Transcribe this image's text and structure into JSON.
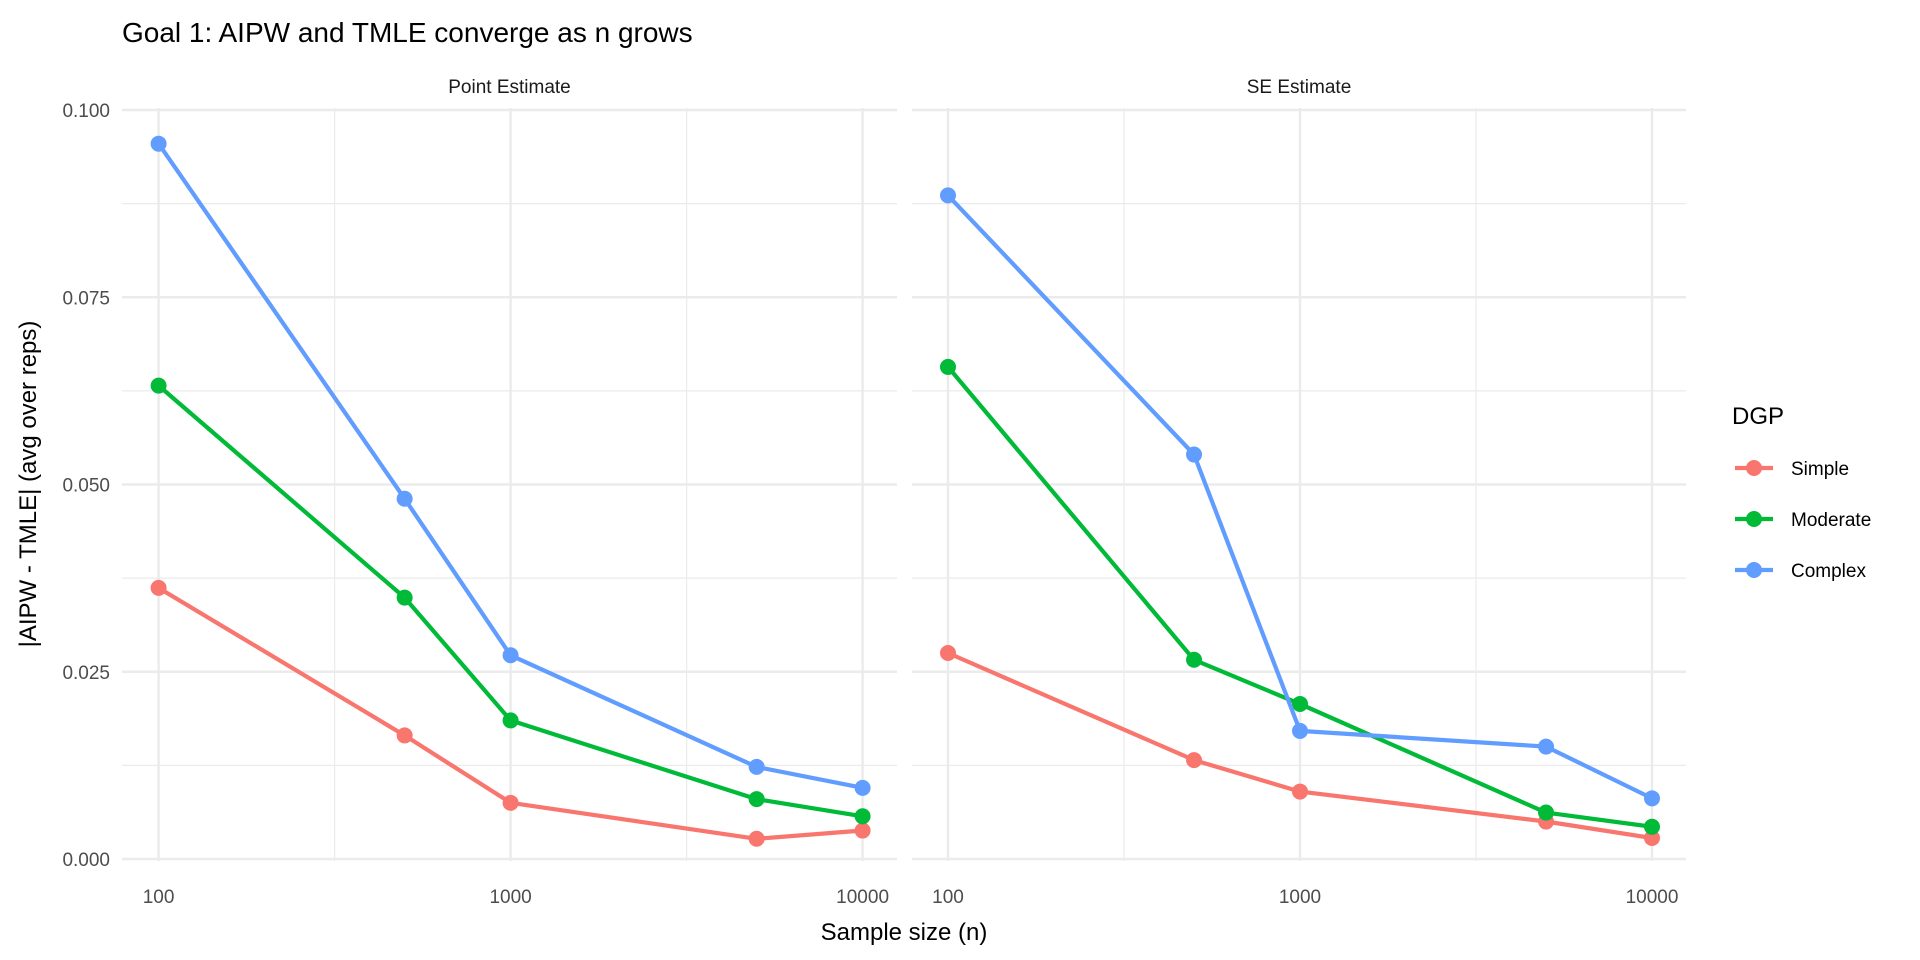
{
  "chart_data": {
    "type": "line",
    "title": "Goal 1: AIPW and TMLE converge as n grows",
    "xlabel": "Sample size (n)",
    "ylabel": "|AIPW - TMLE| (avg over reps)",
    "x_scale": "log10",
    "x": [
      100,
      500,
      1000,
      5000,
      10000
    ],
    "xlim": [
      100,
      10000
    ],
    "ylim": [
      0,
      0.1
    ],
    "x_ticks": [
      100,
      1000,
      10000
    ],
    "x_tick_labels": [
      "100",
      "1000",
      "10000"
    ],
    "y_ticks": [
      0,
      0.025,
      0.05,
      0.075,
      0.1
    ],
    "y_tick_labels": [
      "0.000",
      "0.025",
      "0.050",
      "0.075",
      "0.100"
    ],
    "grid": true,
    "legend": {
      "title": "DGP",
      "placement": "right"
    },
    "facets": [
      {
        "label": "Point Estimate",
        "series": [
          {
            "name": "Simple",
            "color": "#F8766D",
            "values": [
              0.0362,
              0.0165,
              0.0075,
              0.0027,
              0.0038
            ]
          },
          {
            "name": "Moderate",
            "color": "#00BA38",
            "values": [
              0.0632,
              0.0349,
              0.0185,
              0.008,
              0.0057
            ]
          },
          {
            "name": "Complex",
            "color": "#619CFF",
            "values": [
              0.0955,
              0.0481,
              0.0272,
              0.0123,
              0.0095
            ]
          }
        ]
      },
      {
        "label": "SE Estimate",
        "series": [
          {
            "name": "Simple",
            "color": "#F8766D",
            "values": [
              0.0275,
              0.0132,
              0.009,
              0.005,
              0.0028
            ]
          },
          {
            "name": "Moderate",
            "color": "#00BA38",
            "values": [
              0.0657,
              0.0266,
              0.0207,
              0.0062,
              0.0043
            ]
          },
          {
            "name": "Complex",
            "color": "#619CFF",
            "values": [
              0.0886,
              0.054,
              0.0171,
              0.015,
              0.0081
            ]
          }
        ]
      }
    ]
  }
}
